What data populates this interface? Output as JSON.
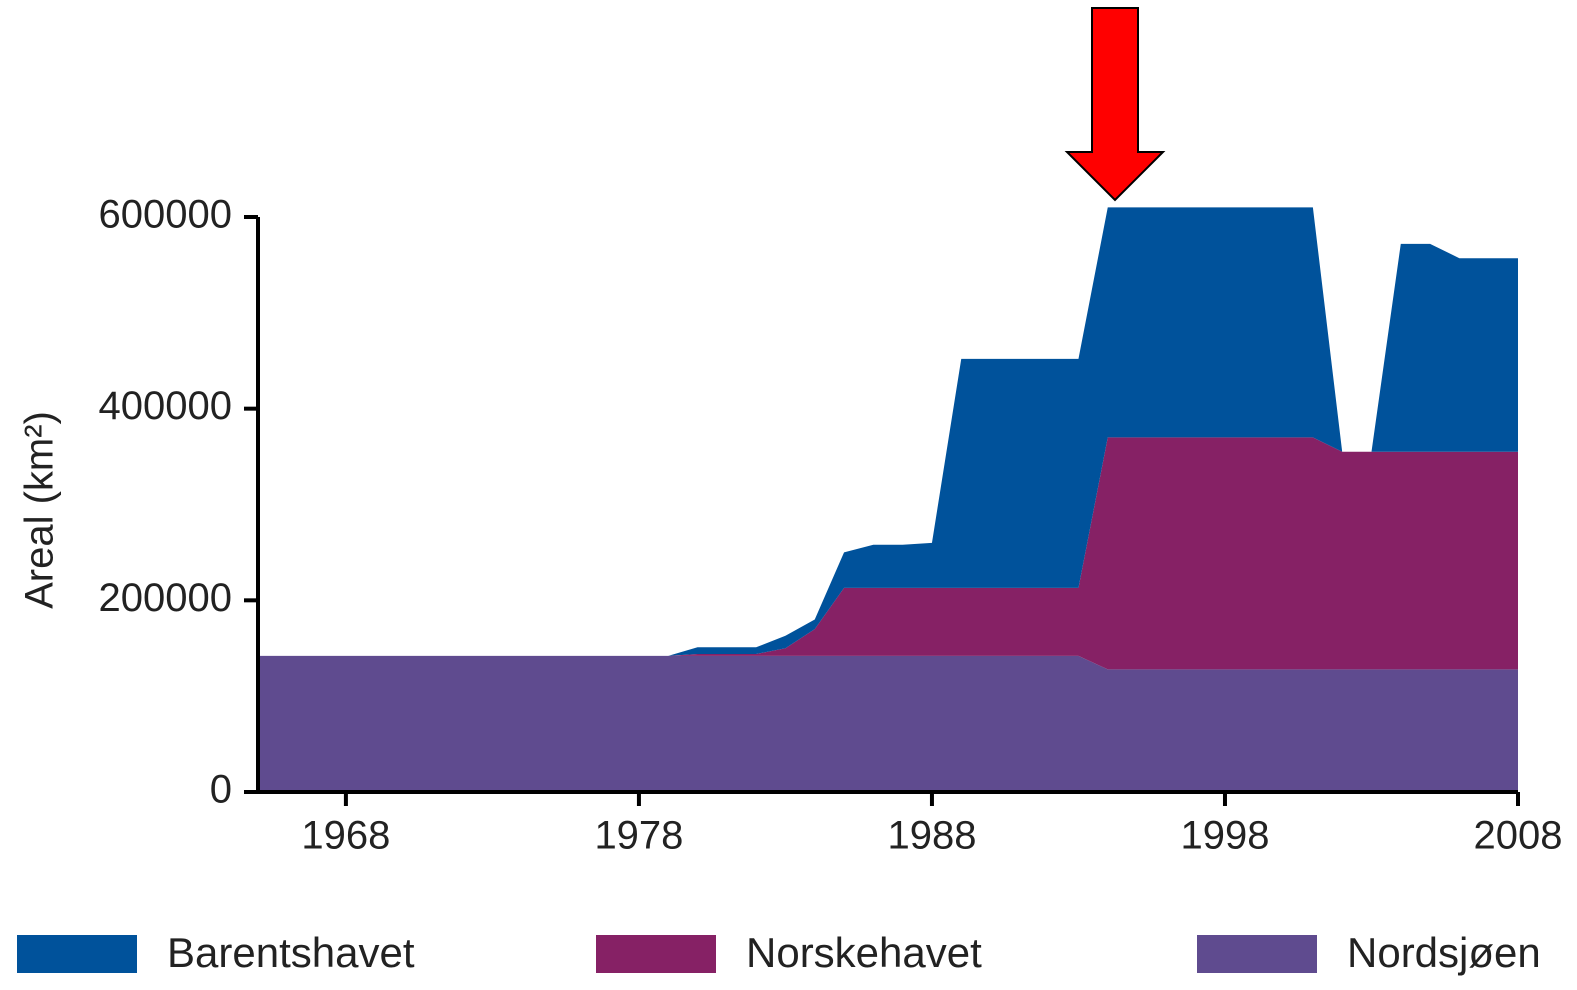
{
  "chart_data": {
    "type": "stacked_area",
    "y_label": "Areal (km²)",
    "x": [
      1965,
      1978,
      1979,
      1980,
      1981,
      1982,
      1983,
      1984,
      1985,
      1986,
      1987,
      1988,
      1989,
      1990,
      1991,
      1992,
      1993,
      1994,
      1995,
      1996,
      1997,
      1998,
      1999,
      2000,
      2001,
      2002,
      2003,
      2004,
      2005,
      2006,
      2007,
      2008
    ],
    "series": [
      {
        "name": "Barentshavet",
        "color": "#00529b",
        "values": [
          0,
          0,
          0,
          7000,
          7000,
          7000,
          13000,
          10000,
          37000,
          45000,
          45000,
          47000,
          239000,
          239000,
          239000,
          239000,
          239000,
          240000,
          240000,
          240000,
          240000,
          240000,
          240000,
          240000,
          240000,
          0,
          0,
          217000,
          217000,
          202000,
          202000,
          202000
        ]
      },
      {
        "name": "Norskehavet",
        "color": "#862165",
        "values": [
          0,
          0,
          0,
          2000,
          2000,
          2000,
          8000,
          28000,
          71000,
          71000,
          71000,
          71000,
          71000,
          71000,
          71000,
          71000,
          71000,
          242000,
          242000,
          242000,
          242000,
          242000,
          242000,
          242000,
          242000,
          227000,
          227000,
          227000,
          227000,
          227000,
          227000,
          227000
        ]
      },
      {
        "name": "Nordsjøen",
        "color": "#5f4b8f",
        "values": [
          142000,
          142000,
          142000,
          142000,
          142000,
          142000,
          142000,
          142000,
          142000,
          142000,
          142000,
          142000,
          142000,
          142000,
          142000,
          142000,
          142000,
          128000,
          128000,
          128000,
          128000,
          128000,
          128000,
          128000,
          128000,
          128000,
          128000,
          128000,
          128000,
          128000,
          128000,
          128000
        ]
      }
    ],
    "xlim": [
      1965,
      2008
    ],
    "xticks": [
      1968,
      1978,
      1988,
      1998,
      2008
    ],
    "ylim": [
      0,
      600000
    ],
    "yticks": [
      0,
      200000,
      400000,
      600000
    ]
  }
}
